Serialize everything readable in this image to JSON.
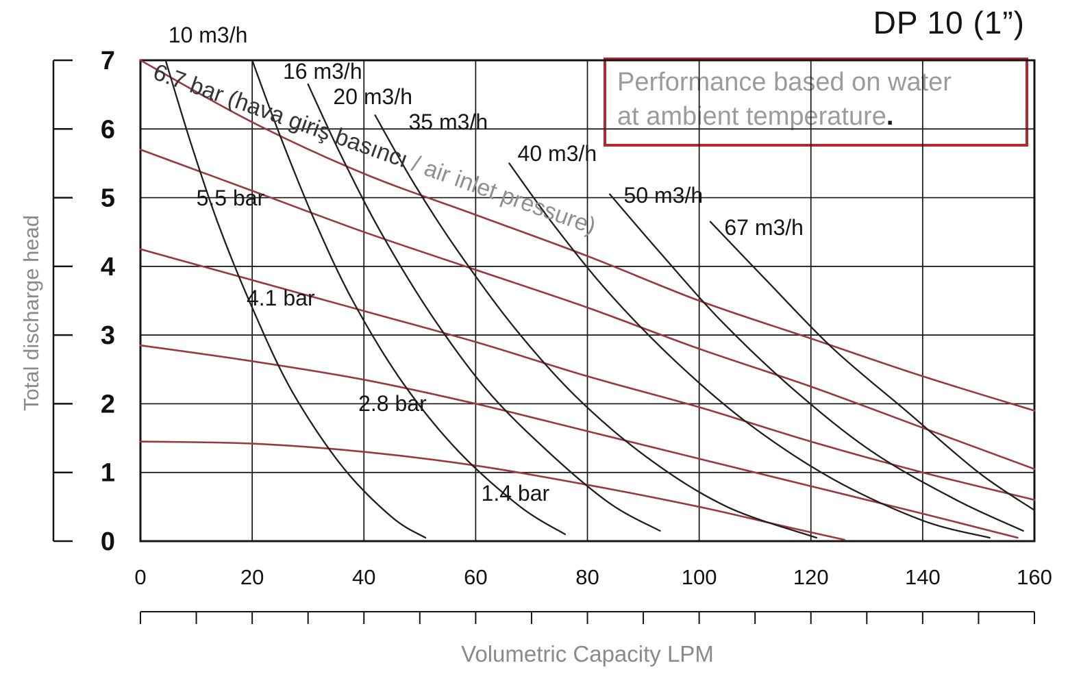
{
  "page": {
    "title": "DP 10 (1”)",
    "note_line1": "Performance based on water",
    "note_line2": "at ambient temperature",
    "note_period": ".",
    "colors": {
      "pressure_curve": "#98393d",
      "air_curve": "#221e1d",
      "note_border": "#b5282f",
      "grid": "#141414",
      "muted_text": "#8a8a8a"
    }
  },
  "chart_data": {
    "type": "line",
    "title": "DP 10 (1”)",
    "xlabel": "Volumetric Capacity LPM",
    "ylabel": "Total discharge head",
    "xlim": [
      0,
      160
    ],
    "ylim": [
      0,
      7
    ],
    "x_major_ticks": [
      0,
      20,
      40,
      60,
      80,
      100,
      120,
      140,
      160
    ],
    "x_minor_step": 10,
    "y_ticks": [
      0,
      1,
      2,
      3,
      4,
      5,
      6,
      7
    ],
    "grid": true,
    "legend": "none",
    "series": [
      {
        "name": "6.7 bar",
        "group": "air_inlet_pressure_bar",
        "points": [
          [
            0,
            7.0
          ],
          [
            20,
            6.1
          ],
          [
            40,
            5.35
          ],
          [
            60,
            4.75
          ],
          [
            80,
            4.15
          ],
          [
            100,
            3.5
          ],
          [
            120,
            2.95
          ],
          [
            140,
            2.4
          ],
          [
            160,
            1.9
          ]
        ]
      },
      {
        "name": "5.5 bar",
        "group": "air_inlet_pressure_bar",
        "points": [
          [
            0,
            5.7
          ],
          [
            20,
            5.1
          ],
          [
            40,
            4.5
          ],
          [
            60,
            3.95
          ],
          [
            80,
            3.4
          ],
          [
            100,
            2.8
          ],
          [
            120,
            2.25
          ],
          [
            140,
            1.65
          ],
          [
            160,
            1.05
          ]
        ]
      },
      {
        "name": "4.1 bar",
        "group": "air_inlet_pressure_bar",
        "points": [
          [
            0,
            4.25
          ],
          [
            20,
            3.8
          ],
          [
            40,
            3.35
          ],
          [
            60,
            2.9
          ],
          [
            80,
            2.4
          ],
          [
            100,
            1.95
          ],
          [
            120,
            1.45
          ],
          [
            140,
            1.0
          ],
          [
            160,
            0.6
          ]
        ]
      },
      {
        "name": "2.8 bar",
        "group": "air_inlet_pressure_bar",
        "points": [
          [
            0,
            2.85
          ],
          [
            20,
            2.62
          ],
          [
            40,
            2.35
          ],
          [
            60,
            2.0
          ],
          [
            80,
            1.6
          ],
          [
            100,
            1.2
          ],
          [
            120,
            0.8
          ],
          [
            140,
            0.4
          ],
          [
            157,
            0.05
          ]
        ]
      },
      {
        "name": "1.4 bar",
        "group": "air_inlet_pressure_bar",
        "points": [
          [
            0,
            1.45
          ],
          [
            20,
            1.42
          ],
          [
            40,
            1.3
          ],
          [
            60,
            1.1
          ],
          [
            80,
            0.82
          ],
          [
            100,
            0.5
          ],
          [
            115,
            0.22
          ],
          [
            126,
            0.02
          ]
        ]
      },
      {
        "name": "10 m3/h",
        "group": "air_consumption_m3h",
        "points": [
          [
            4.5,
            7.0
          ],
          [
            9,
            5.8
          ],
          [
            14,
            4.6
          ],
          [
            20,
            3.4
          ],
          [
            27,
            2.2
          ],
          [
            36,
            1.1
          ],
          [
            45,
            0.35
          ],
          [
            51,
            0.05
          ]
        ]
      },
      {
        "name": "16 m3/h",
        "group": "air_consumption_m3h",
        "points": [
          [
            20,
            7.0
          ],
          [
            25,
            5.9
          ],
          [
            31,
            4.7
          ],
          [
            38,
            3.5
          ],
          [
            47,
            2.3
          ],
          [
            57,
            1.3
          ],
          [
            68,
            0.5
          ],
          [
            76,
            0.1
          ]
        ]
      },
      {
        "name": "20 m3/h",
        "group": "air_consumption_m3h",
        "points": [
          [
            30,
            6.65
          ],
          [
            36,
            5.6
          ],
          [
            43,
            4.5
          ],
          [
            52,
            3.3
          ],
          [
            62,
            2.2
          ],
          [
            73,
            1.3
          ],
          [
            84,
            0.55
          ],
          [
            93,
            0.15
          ]
        ]
      },
      {
        "name": "35 m3/h",
        "group": "air_consumption_m3h",
        "points": [
          [
            42,
            6.2
          ],
          [
            49,
            5.2
          ],
          [
            57,
            4.2
          ],
          [
            67,
            3.1
          ],
          [
            78,
            2.1
          ],
          [
            91,
            1.2
          ],
          [
            105,
            0.5
          ],
          [
            121,
            0.05
          ]
        ]
      },
      {
        "name": "40 m3/h",
        "group": "air_consumption_m3h",
        "points": [
          [
            66,
            5.5
          ],
          [
            74,
            4.6
          ],
          [
            84,
            3.6
          ],
          [
            96,
            2.6
          ],
          [
            109,
            1.7
          ],
          [
            124,
            0.9
          ],
          [
            140,
            0.3
          ],
          [
            152,
            0.05
          ]
        ]
      },
      {
        "name": "50 m3/h",
        "group": "air_consumption_m3h",
        "points": [
          [
            84,
            5.05
          ],
          [
            93,
            4.2
          ],
          [
            104,
            3.2
          ],
          [
            117,
            2.2
          ],
          [
            131,
            1.3
          ],
          [
            146,
            0.6
          ],
          [
            158,
            0.15
          ]
        ]
      },
      {
        "name": "67 m3/h",
        "group": "air_consumption_m3h",
        "points": [
          [
            102,
            4.65
          ],
          [
            112,
            3.8
          ],
          [
            124,
            2.8
          ],
          [
            137,
            1.9
          ],
          [
            150,
            1.0
          ],
          [
            160,
            0.45
          ]
        ]
      }
    ],
    "annotations": [
      {
        "text": "10 m3/h",
        "x": 5,
        "y": 7.35,
        "role": "air"
      },
      {
        "text": "16 m3/h",
        "x": 25.5,
        "y": 6.82,
        "role": "air"
      },
      {
        "text": "20 m3/h",
        "x": 34.5,
        "y": 6.45,
        "role": "air"
      },
      {
        "text": "35 m3/h",
        "x": 48,
        "y": 6.08,
        "role": "air"
      },
      {
        "text": "40 m3/h",
        "x": 67.5,
        "y": 5.62,
        "role": "air"
      },
      {
        "text": "50 m3/h",
        "x": 86.5,
        "y": 5.02,
        "role": "air"
      },
      {
        "text": "67 m3/h",
        "x": 104.5,
        "y": 4.55,
        "role": "air"
      },
      {
        "text": "5.5 bar",
        "x": 10,
        "y": 4.98,
        "role": "pressure"
      },
      {
        "text": "4.1 bar",
        "x": 19,
        "y": 3.52,
        "role": "pressure"
      },
      {
        "text": "2.8 bar",
        "x": 39,
        "y": 1.98,
        "role": "pressure"
      },
      {
        "text": "1.4 bar",
        "x": 61,
        "y": 0.68,
        "role": "pressure"
      },
      {
        "text": "6.7 bar (hava giriş basıncı ",
        "text2": "/ air inlet pressure)",
        "x": 2.5,
        "y": 6.83,
        "rotate": 19.5,
        "role": "pressure-rotated"
      }
    ]
  }
}
